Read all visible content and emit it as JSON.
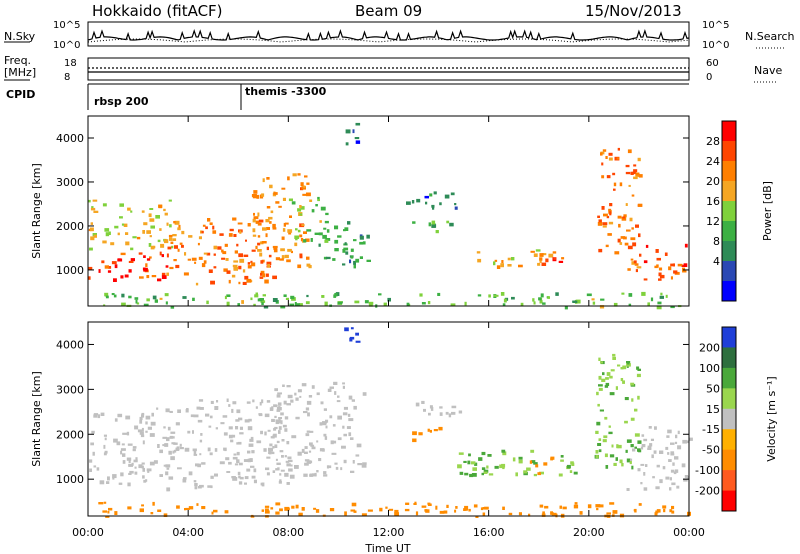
{
  "header": {
    "radar": "Hokkaido (fitACF)",
    "beam": "Beam 09",
    "date": "15/Nov/2013"
  },
  "top_panels": {
    "nsky_label": "N.Sky",
    "nsky_ticks": [
      "10^5",
      "10^0"
    ],
    "nsky_right_ticks": [
      "10^5",
      "10^0"
    ],
    "nsearch_label": "N.Search",
    "freq_label_1": "Freq.",
    "freq_label_2": "[MHz]",
    "freq_ticks": [
      "18",
      "8"
    ],
    "nave_ticks": [
      "60",
      "0"
    ],
    "nave_label": "Nave",
    "cpid_label": "CPID",
    "cpid_modes": [
      {
        "name": "rbsp 200",
        "start_hour": 0
      },
      {
        "name": "themis -3300",
        "start_hour": 6
      }
    ]
  },
  "colors": {
    "power_scale": [
      "#0000ff",
      "#2a48b4",
      "#2e8b57",
      "#3cb043",
      "#7fd13b",
      "#f5a623",
      "#ff7f00",
      "#ff4500",
      "#ff0000"
    ],
    "velocity_scale": [
      "#1f3fd8",
      "#2e6f3e",
      "#4aa83a",
      "#9ad64e",
      "#c0c0c0",
      "#ffb000",
      "#ff8c00",
      "#ff5a1f",
      "#ff0000"
    ]
  },
  "chart_data": [
    {
      "type": "heatmap",
      "name": "power",
      "ylabel": "Slant Range [km]",
      "colorbar_label": "Power [dB]",
      "colorbar_ticks": [
        "28",
        "24",
        "20",
        "16",
        "12",
        "8",
        "4"
      ],
      "ylim": [
        180,
        4500
      ],
      "yticks": [
        "4000",
        "3000",
        "2000",
        "1000"
      ],
      "xlim": [
        0,
        24
      ],
      "xticks": [
        "00:00",
        "04:00",
        "08:00",
        "12:00",
        "16:00",
        "20:00",
        "00:00"
      ],
      "regions": [
        {
          "t0": 0.0,
          "t1": 3.2,
          "r0": 800,
          "r1": 1500,
          "v": 28
        },
        {
          "t0": 0.0,
          "t1": 3.5,
          "r0": 1500,
          "r1": 2600,
          "v": 18
        },
        {
          "t0": 3.0,
          "t1": 7.5,
          "r0": 700,
          "r1": 2200,
          "v": 24
        },
        {
          "t0": 6.5,
          "t1": 8.8,
          "r0": 1100,
          "r1": 3200,
          "v": 22
        },
        {
          "t0": 8.0,
          "t1": 9.5,
          "r0": 1500,
          "r1": 2700,
          "v": 16
        },
        {
          "t0": 9.2,
          "t1": 11.2,
          "r0": 1100,
          "r1": 2200,
          "v": 10
        },
        {
          "t0": 10.2,
          "t1": 10.8,
          "r0": 3900,
          "r1": 4400,
          "v": 6
        },
        {
          "t0": 12.7,
          "t1": 15.0,
          "r0": 2400,
          "r1": 2800,
          "v": 7
        },
        {
          "t0": 12.8,
          "t1": 14.8,
          "r0": 1900,
          "r1": 2200,
          "v": 12
        },
        {
          "t0": 15.5,
          "t1": 18.8,
          "r0": 1100,
          "r1": 1500,
          "v": 20
        },
        {
          "t0": 18.0,
          "t1": 19.2,
          "r0": 1150,
          "r1": 1300,
          "v": 28
        },
        {
          "t0": 20.3,
          "t1": 22.0,
          "r0": 1000,
          "r1": 3800,
          "v": 24
        },
        {
          "t0": 22.0,
          "t1": 24.0,
          "r0": 800,
          "r1": 1600,
          "v": 26
        },
        {
          "t0": 0.0,
          "t1": 24.0,
          "r0": 180,
          "r1": 500,
          "v": 14
        }
      ]
    },
    {
      "type": "heatmap",
      "name": "velocity",
      "ylabel": "Slant Range [km]",
      "xlabel": "Time UT",
      "colorbar_label": "Velocity [m s⁻¹]",
      "colorbar_ticks": [
        "200",
        "100",
        "50",
        "15",
        "-15",
        "-50",
        "-100",
        "-200"
      ],
      "ylim": [
        180,
        4500
      ],
      "yticks": [
        "4000",
        "3000",
        "2000",
        "1000"
      ],
      "xlim": [
        0,
        24
      ],
      "xticks": [
        "00:00",
        "04:00",
        "08:00",
        "12:00",
        "16:00",
        "20:00",
        "00:00"
      ],
      "regions": [
        {
          "t0": 0.0,
          "t1": 3.5,
          "r0": 900,
          "r1": 2600,
          "v": 0
        },
        {
          "t0": 3.0,
          "t1": 8.0,
          "r0": 800,
          "r1": 2800,
          "v": 0
        },
        {
          "t0": 7.0,
          "t1": 11.0,
          "r0": 1100,
          "r1": 3200,
          "v": 0
        },
        {
          "t0": 10.2,
          "t1": 10.8,
          "r0": 3950,
          "r1": 4400,
          "v": 220
        },
        {
          "t0": 13.0,
          "t1": 15.0,
          "r0": 2400,
          "r1": 2800,
          "v": 0
        },
        {
          "t0": 12.9,
          "t1": 14.3,
          "r0": 1900,
          "r1": 2200,
          "v": -60
        },
        {
          "t0": 14.5,
          "t1": 19.5,
          "r0": 1100,
          "r1": 1700,
          "v": 30
        },
        {
          "t0": 17.6,
          "t1": 18.5,
          "r0": 1150,
          "r1": 1550,
          "v": -70
        },
        {
          "t0": 20.2,
          "t1": 22.0,
          "r0": 1200,
          "r1": 3800,
          "v": 30
        },
        {
          "t0": 21.5,
          "t1": 24.0,
          "r0": 800,
          "r1": 2200,
          "v": 0
        },
        {
          "t0": 0.0,
          "t1": 24.0,
          "r0": 180,
          "r1": 500,
          "v": -60
        }
      ]
    }
  ]
}
